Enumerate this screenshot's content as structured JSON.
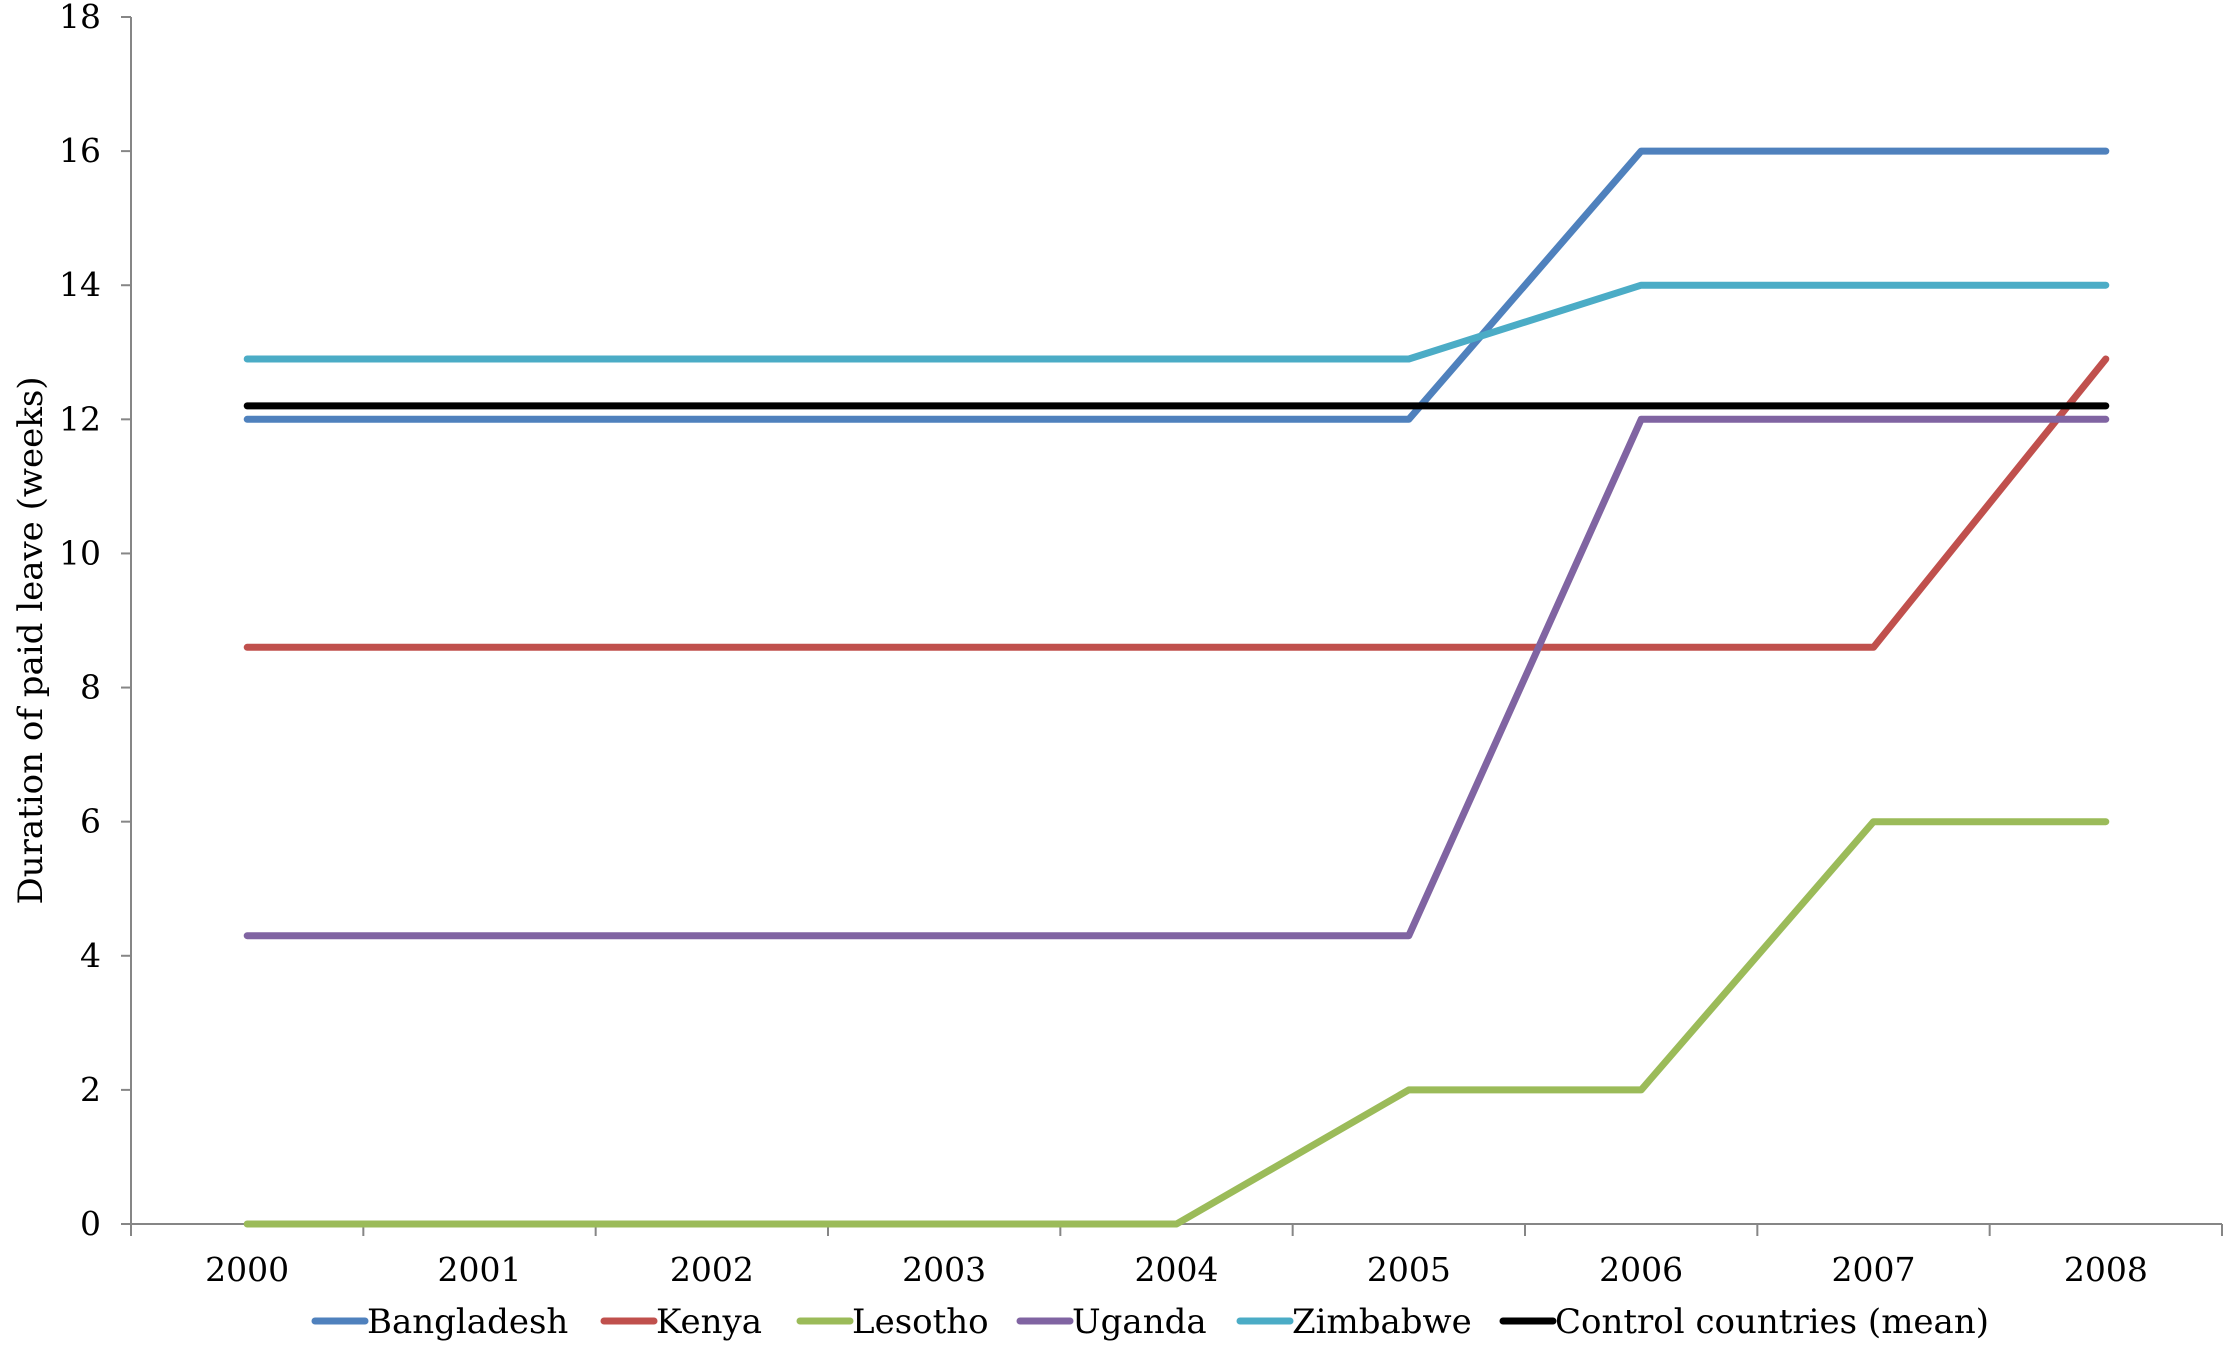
{
  "chart_data": {
    "type": "line",
    "title": "",
    "xlabel": "",
    "ylabel": "Duration of paid leave (weeks)",
    "x": [
      "2000",
      "2001",
      "2002",
      "2003",
      "2004",
      "2005",
      "2006",
      "2007",
      "2008"
    ],
    "ylim": [
      0,
      18
    ],
    "yticks": [
      0,
      2,
      4,
      6,
      8,
      10,
      12,
      14,
      16,
      18
    ],
    "grid": false,
    "legend_position": "bottom",
    "series": [
      {
        "name": "Bangladesh",
        "color": "#4F81BD",
        "values": [
          12,
          12,
          12,
          12,
          12,
          12,
          16,
          16,
          16
        ]
      },
      {
        "name": "Kenya",
        "color": "#C0504D",
        "values": [
          8.6,
          8.6,
          8.6,
          8.6,
          8.6,
          8.6,
          8.6,
          8.6,
          12.9
        ]
      },
      {
        "name": "Lesotho",
        "color": "#9BBB59",
        "values": [
          0,
          0,
          0,
          0,
          0,
          2,
          2,
          6,
          6
        ]
      },
      {
        "name": "Uganda",
        "color": "#8064A2",
        "values": [
          4.3,
          4.3,
          4.3,
          4.3,
          4.3,
          4.3,
          12,
          12,
          12
        ]
      },
      {
        "name": "Zimbabwe",
        "color": "#4BACC6",
        "values": [
          12.9,
          12.9,
          12.9,
          12.9,
          12.9,
          12.9,
          14,
          14,
          14
        ]
      },
      {
        "name": "Control countries (mean)",
        "color": "#000000",
        "values": [
          12.2,
          12.2,
          12.2,
          12.2,
          12.2,
          12.2,
          12.2,
          12.2,
          12.2
        ]
      }
    ]
  }
}
